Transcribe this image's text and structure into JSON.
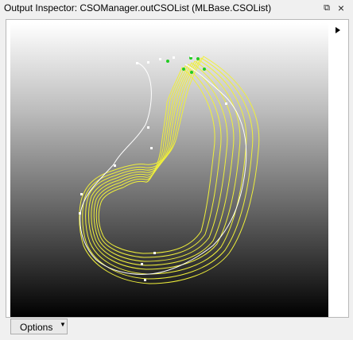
{
  "window": {
    "title": "Output Inspector: CSOManager.outCSOList (MLBase.CSOList)",
    "restore_icon": "restore-window-icon",
    "close_icon": "close-icon"
  },
  "viewer": {
    "expand_icon": "triangle-right-icon",
    "background_top": "#ffffff",
    "background_bottom": "#000000",
    "contour_color": "#f0f03a",
    "active_contour_color": "#ffffff",
    "seed_color": "#22cc22"
  },
  "footer": {
    "options_label": "Options",
    "options_icon": "caret-down-icon"
  }
}
